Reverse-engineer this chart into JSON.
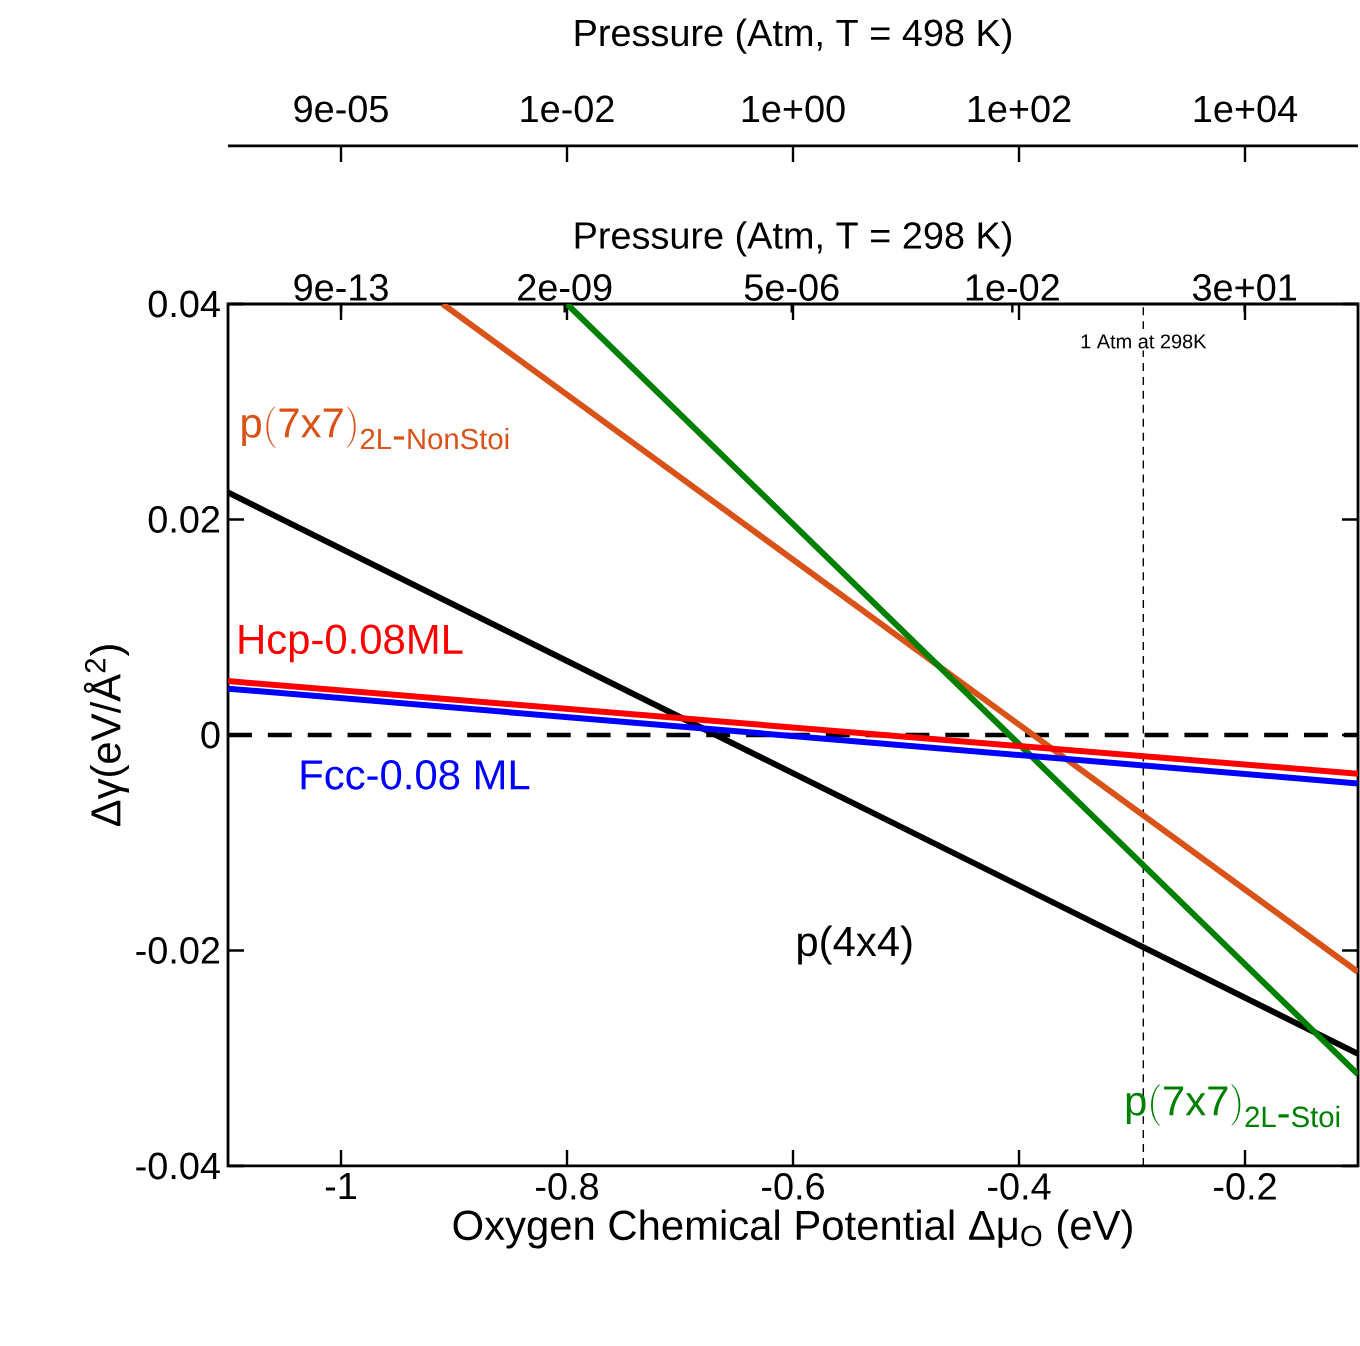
{
  "chart_data": [
    {
      "type": "other",
      "xlabel": "Pressure (Atm, T = 498 K)",
      "annotations": [
        "9e-05",
        "1e-02",
        "1e+00",
        "1e+02",
        "1e+04"
      ]
    },
    {
      "type": "line",
      "xlabel": "Oxygen Chemical Potential Δμ$_{O}$ (eV)",
      "ylabel": "Δγ(eV/Å$^{2}$)",
      "x2label": "Pressure (Atm, T = 298 K)",
      "xlim": [
        -1.1,
        -0.1
      ],
      "xticks": [
        -1,
        -0.8,
        -0.6,
        -0.4,
        -0.2
      ],
      "ylim": [
        -0.04,
        0.04
      ],
      "yticks": [
        -0.04,
        -0.02,
        0,
        0.02,
        0.04
      ],
      "x2lim": [
        1.83e-14,
        1490.0
      ],
      "log": "x2",
      "x2ticks": [
        {
          "value": 9e-13,
          "label": "9e-13"
        },
        {
          "value": 2e-09,
          "label": "2e-09"
        },
        {
          "value": 5e-06,
          "label": "5e-06"
        },
        {
          "value": 0.01,
          "label": "1e-02"
        },
        {
          "value": 30,
          "label": "3e+01"
        }
      ],
      "series": [
        {
          "name": "\\mathrm{p(7x7)}_{\\mathrm{2L\\mbox{-}NonStoi}}",
          "color": "#d95319",
          "x": [
            -0.91,
            -0.1
          ],
          "values": [
            0.04,
            -0.022
          ]
        },
        {
          "name": "p(4x4)",
          "color": "#000000",
          "x": [
            -1.1,
            -0.1
          ],
          "values": [
            0.0225,
            -0.0296
          ]
        },
        {
          "name": "Fcc-0.08 ML",
          "color": "#0000ff",
          "x": [
            -1.1,
            -0.1
          ],
          "values": [
            0.0043,
            -0.0045
          ]
        },
        {
          "name": "Hcp-0.08ML",
          "color": "#ff0000",
          "x": [
            -1.1,
            -0.1
          ],
          "values": [
            0.005,
            -0.0036
          ]
        },
        {
          "name": "\\mathrm{p(7x7)}_{\\mathrm{2L\\mbox{-}Stoi}}",
          "color": "#008000",
          "x": [
            -0.8,
            -0.1
          ],
          "values": [
            0.04,
            -0.0315
          ]
        }
      ],
      "ref_lines": [
        {
          "axis": "y",
          "value": 0,
          "color": "#000000",
          "line_style": "dashed"
        },
        {
          "axis": "x",
          "value": -0.29,
          "label": "1 Atm at 298K",
          "color": "#000000",
          "line_style": "dashed"
        }
      ],
      "grid": false
    }
  ]
}
